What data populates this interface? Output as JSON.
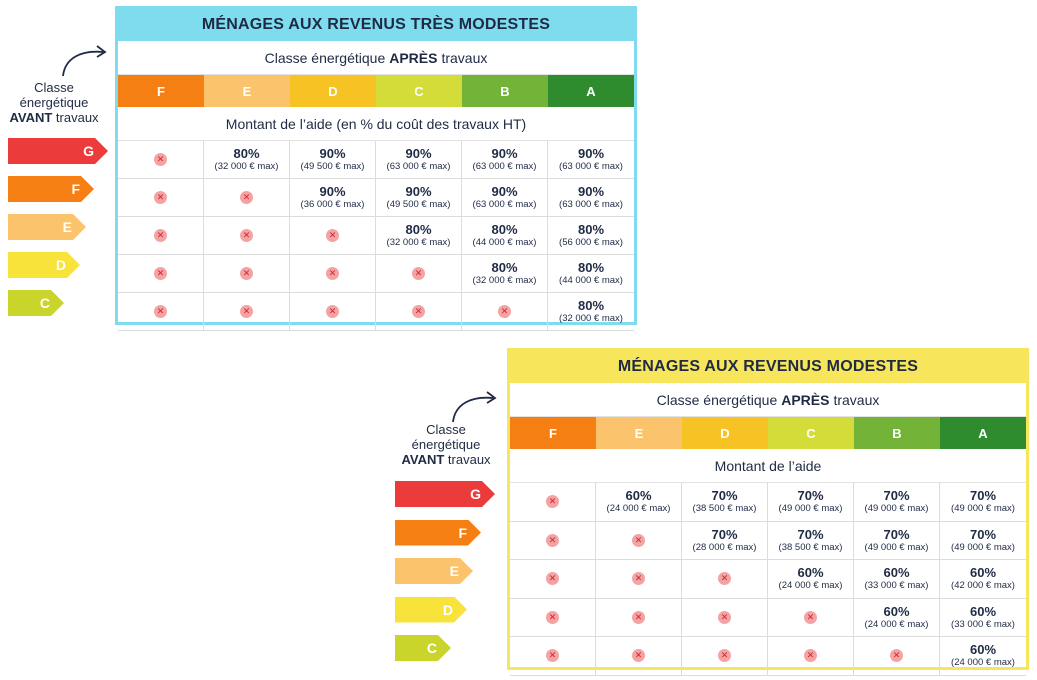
{
  "colors": {
    "class_F": "#f57f12",
    "class_E": "#fbc36b",
    "class_D": "#f6c224",
    "class_C": "#d4dc3a",
    "class_B": "#72b338",
    "class_A": "#2e8b2e",
    "tag_G": "#ec3b3b",
    "tag_F": "#f57f12",
    "tag_E": "#fbc36b",
    "tag_D": "#f8e33a",
    "tag_C": "#c9d52a"
  },
  "panel1": {
    "side_label_line1": "Classe",
    "side_label_line2": "énergétique",
    "side_label_bold": "AVANT",
    "side_label_line3": "travaux",
    "title": "MÉNAGES AUX REVENUS TRÈS MODESTES",
    "after_prefix": "Classe énergétique",
    "after_bold": "APRÈS",
    "after_suffix": "travaux",
    "classes": [
      "F",
      "E",
      "D",
      "C",
      "B",
      "A"
    ],
    "amount_header": "Montant de l’aide (en % du coût des travaux HT)",
    "before_classes": [
      "G",
      "F",
      "E",
      "D",
      "C"
    ],
    "rows": [
      [
        null,
        {
          "pct": "80%",
          "max": "(32 000 € max)"
        },
        {
          "pct": "90%",
          "max": "(49 500 € max)"
        },
        {
          "pct": "90%",
          "max": "(63 000 € max)"
        },
        {
          "pct": "90%",
          "max": "(63 000 € max)"
        },
        {
          "pct": "90%",
          "max": "(63 000 € max)"
        }
      ],
      [
        null,
        null,
        {
          "pct": "90%",
          "max": "(36 000 € max)"
        },
        {
          "pct": "90%",
          "max": "(49 500 € max)"
        },
        {
          "pct": "90%",
          "max": "(63 000 € max)"
        },
        {
          "pct": "90%",
          "max": "(63 000 € max)"
        }
      ],
      [
        null,
        null,
        null,
        {
          "pct": "80%",
          "max": "(32 000 € max)"
        },
        {
          "pct": "80%",
          "max": "(44 000 € max)"
        },
        {
          "pct": "80%",
          "max": "(56 000 € max)"
        }
      ],
      [
        null,
        null,
        null,
        null,
        {
          "pct": "80%",
          "max": "(32 000 € max)"
        },
        {
          "pct": "80%",
          "max": "(44 000 € max)"
        }
      ],
      [
        null,
        null,
        null,
        null,
        null,
        {
          "pct": "80%",
          "max": "(32 000 € max)"
        }
      ]
    ]
  },
  "panel2": {
    "side_label_line1": "Classe",
    "side_label_line2": "énergétique",
    "side_label_bold": "AVANT",
    "side_label_line3": "travaux",
    "title": "MÉNAGES AUX REVENUS MODESTES",
    "after_prefix": "Classe énergétique",
    "after_bold": "APRÈS",
    "after_suffix": "travaux",
    "classes": [
      "F",
      "E",
      "D",
      "C",
      "B",
      "A"
    ],
    "amount_header": "Montant de l’aide",
    "before_classes": [
      "G",
      "F",
      "E",
      "D",
      "C"
    ],
    "rows": [
      [
        null,
        {
          "pct": "60%",
          "max": "(24 000 € max)"
        },
        {
          "pct": "70%",
          "max": "(38 500 € max)"
        },
        {
          "pct": "70%",
          "max": "(49 000 € max)"
        },
        {
          "pct": "70%",
          "max": "(49 000 € max)"
        },
        {
          "pct": "70%",
          "max": "(49 000 € max)"
        }
      ],
      [
        null,
        null,
        {
          "pct": "70%",
          "max": "(28 000 € max)"
        },
        {
          "pct": "70%",
          "max": "(38 500 € max)"
        },
        {
          "pct": "70%",
          "max": "(49 000 € max)"
        },
        {
          "pct": "70%",
          "max": "(49 000 € max)"
        }
      ],
      [
        null,
        null,
        null,
        {
          "pct": "60%",
          "max": "(24 000 € max)"
        },
        {
          "pct": "60%",
          "max": "(33 000 € max)"
        },
        {
          "pct": "60%",
          "max": "(42 000 € max)"
        }
      ],
      [
        null,
        null,
        null,
        null,
        {
          "pct": "60%",
          "max": "(24 000 € max)"
        },
        {
          "pct": "60%",
          "max": "(33 000 € max)"
        }
      ],
      [
        null,
        null,
        null,
        null,
        null,
        {
          "pct": "60%",
          "max": "(24 000 € max)"
        }
      ]
    ]
  }
}
